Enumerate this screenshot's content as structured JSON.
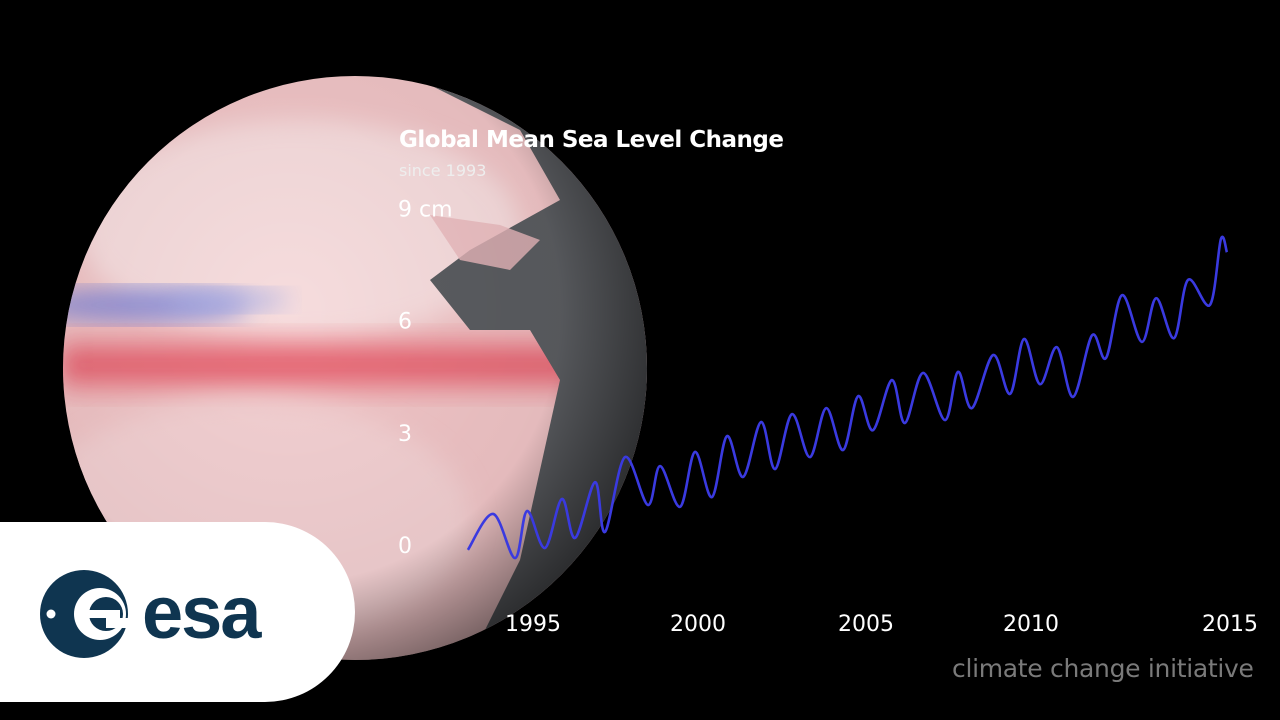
{
  "chart_data": {
    "type": "line",
    "title": "Global Mean Sea Level Change",
    "subtitle": "since 1993",
    "y_unit": "cm",
    "ylim": [
      0,
      9
    ],
    "yticks": [
      0,
      3,
      6,
      9
    ],
    "ytick_labels": [
      "0",
      "3",
      "6",
      "9 cm"
    ],
    "xticks": [
      1995,
      2000,
      2005,
      2010,
      2015
    ],
    "xtick_labels": [
      "1995",
      "2000",
      "2005",
      "2010",
      "2015"
    ],
    "grid": false,
    "line_color": "#3a3ae0",
    "series": [
      {
        "x": [
          1993.04,
          1993.8,
          1994.46,
          1994.82,
          1995.36,
          1995.87,
          1996.27,
          1996.87,
          1997.17,
          1997.77,
          1998.46,
          1998.83,
          1999.43,
          1999.88,
          2000.39,
          2000.84,
          2001.33,
          2001.87,
          2002.29,
          2002.8,
          2003.34,
          2003.83,
          2004.34,
          2004.79,
          2005.24,
          2005.81,
          2006.2,
          2006.75,
          2007.41,
          2007.8,
          2008.22,
          2008.86,
          2009.37,
          2009.79,
          2010.27,
          2010.78,
          2011.27,
          2011.84,
          2012.26,
          2012.74,
          2013.34,
          2013.77,
          2014.31,
          2014.73,
          2015.39,
          2015.72,
          2015.9
        ],
        "y": [
          -0.13,
          0.83,
          -0.35,
          0.91,
          -0.08,
          1.23,
          0.19,
          1.68,
          0.35,
          2.35,
          1.07,
          2.11,
          1.02,
          2.49,
          1.28,
          2.91,
          1.82,
          3.29,
          2.03,
          3.5,
          2.35,
          3.66,
          2.54,
          3.98,
          3.07,
          4.41,
          3.26,
          4.6,
          3.34,
          4.63,
          3.66,
          5.08,
          4.04,
          5.51,
          4.3,
          5.29,
          3.96,
          5.61,
          5.0,
          6.68,
          5.43,
          6.6,
          5.53,
          7.09,
          6.42,
          8.18,
          7.83
        ]
      }
    ]
  },
  "branding": {
    "logo_text": "esa",
    "credit": "climate change initiative",
    "logo_color": "#0f3550"
  }
}
